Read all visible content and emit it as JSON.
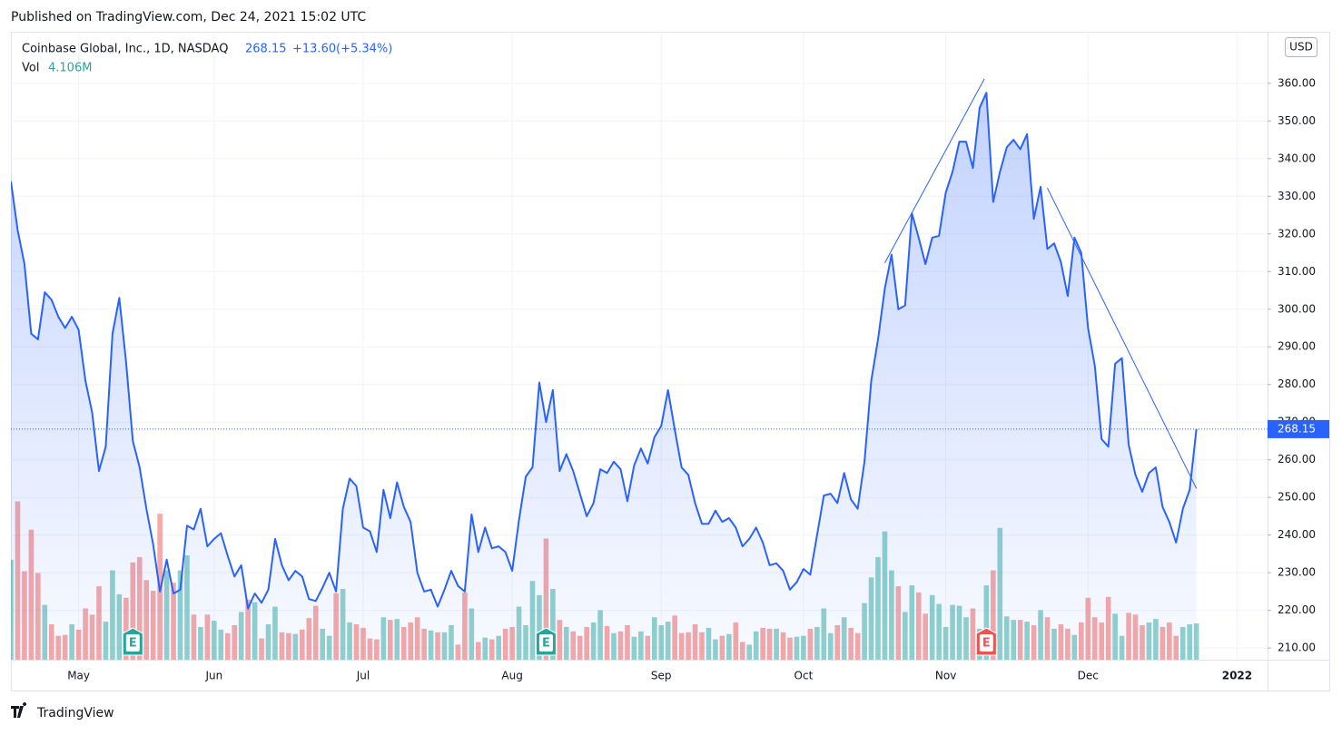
{
  "published": "Published on TradingView.com, Dec 24, 2021 15:02 UTC",
  "brand": "TradingView",
  "chart_data": {
    "type": "line",
    "title": "Coinbase Global, Inc., 1D, NASDAQ",
    "change": "+13.60",
    "change_pct": "(+5.34%)",
    "currency": "USD",
    "color": "#2962ff",
    "categories": [
      null,
      null,
      null,
      null,
      null,
      null,
      null,
      null,
      null,
      null,
      "May",
      null,
      null,
      null,
      null,
      null,
      null,
      null,
      null,
      null,
      null,
      null,
      null,
      null,
      null,
      null,
      null,
      null,
      null,
      null,
      "Jun",
      null,
      null,
      null,
      null,
      null,
      null,
      null,
      null,
      null,
      null,
      null,
      null,
      null,
      null,
      null,
      null,
      null,
      null,
      null,
      null,
      null,
      "Jul",
      null,
      null,
      null,
      null,
      null,
      null,
      null,
      null,
      null,
      null,
      null,
      null,
      null,
      null,
      null,
      null,
      null,
      null,
      null,
      null,
      null,
      "Aug",
      null,
      null,
      null,
      null,
      null,
      null,
      null,
      null,
      null,
      null,
      null,
      null,
      null,
      null,
      null,
      null,
      null,
      null,
      null,
      null,
      null,
      "Sep",
      null,
      null,
      null,
      null,
      null,
      null,
      null,
      null,
      null,
      null,
      null,
      null,
      null,
      null,
      null,
      null,
      null,
      null,
      null,
      null,
      "Oct",
      null,
      null,
      null,
      null,
      null,
      null,
      null,
      null,
      null,
      null,
      null,
      null,
      null,
      null,
      null,
      null,
      null,
      null,
      null,
      null,
      "Nov",
      null,
      null,
      null,
      null,
      null,
      null,
      null,
      null,
      null,
      null,
      null,
      null,
      null,
      null,
      null,
      null,
      null,
      null,
      null,
      null,
      "Dec",
      null,
      null,
      null,
      null,
      null,
      null,
      null,
      null,
      null,
      null,
      null,
      null,
      null,
      null,
      null,
      null,
      null,
      null,
      null,
      null,
      null,
      "2022",
      null,
      null,
      null,
      null
    ],
    "series": [
      {
        "name": "Price",
        "color": "#2962ff",
        "values": [
          334,
          321,
          312,
          293.5,
          292,
          304.5,
          302.5,
          298,
          295,
          298,
          294.5,
          281,
          272.5,
          257,
          263.5,
          293.5,
          303,
          286,
          265,
          258,
          247,
          237.5,
          225,
          233.5,
          224.5,
          225.5,
          242.5,
          241.5,
          247,
          237,
          239,
          240.5,
          234.5,
          229,
          232,
          220.5,
          224.5,
          222,
          225.5,
          239,
          232,
          228,
          230.5,
          229,
          223,
          222.5,
          226,
          230,
          225,
          247,
          255,
          253,
          242,
          241,
          235.5,
          252,
          244.5,
          254,
          247.5,
          243.5,
          230,
          225,
          225.5,
          221,
          225.5,
          230.5,
          226.5,
          225,
          245.5,
          235.5,
          242,
          236.5,
          237,
          235.5,
          230.5,
          244,
          255.5,
          258,
          280.5,
          270,
          278.5,
          257,
          261.5,
          257,
          251,
          245,
          248.5,
          257.5,
          256.5,
          259.5,
          257.5,
          249,
          258.5,
          263,
          259,
          266,
          269,
          278.5,
          268,
          258,
          256,
          248.5,
          243,
          243,
          246.5,
          243.5,
          244.5,
          242,
          237,
          239,
          242,
          238,
          232,
          232.5,
          230.5,
          225.5,
          227.5,
          231,
          229.5,
          240,
          250.5,
          251,
          248.5,
          256.5,
          249.5,
          247,
          259.5,
          281,
          292,
          305.5,
          314.5,
          300,
          301,
          325.5,
          319,
          312,
          319,
          319.5,
          331,
          336.5,
          344.5,
          344.5,
          337.5,
          353.5,
          357.5,
          328.5,
          336.5,
          343,
          345,
          342.5,
          346.5,
          324,
          332.5,
          316,
          317.5,
          312.5,
          303.5,
          319,
          315,
          295,
          285,
          265.5,
          263.5,
          285.5,
          287,
          264,
          256,
          251.5,
          256.5,
          258,
          247.5,
          243.5,
          238,
          247,
          252,
          268.15,
          null,
          null,
          null,
          null,
          null,
          null,
          null,
          null,
          null,
          null
        ]
      }
    ],
    "volume": {
      "name": "Vol",
      "label": "4.106M",
      "up_color": "#26a69a",
      "down_color": "#ef5350",
      "ylim": [
        0,
        71
      ],
      "values": [
        11.3,
        17.9,
        10,
        14.7,
        9.8,
        6.2,
        4,
        2.7,
        2.8,
        4,
        3.4,
        5.8,
        5.1,
        8.3,
        4.3,
        10.1,
        7.4,
        7,
        11,
        11.6,
        9,
        7.8,
        16.5,
        10.1,
        8.7,
        10.1,
        11.8,
        5.1,
        3.7,
        5.1,
        4.4,
        3.4,
        3,
        3.9,
        5.4,
        6.8,
        6.5,
        2.4,
        4,
        6,
        3.1,
        3,
        2.9,
        3.4,
        4.7,
        6.1,
        3.5,
        2.7,
        7.5,
        8,
        4.2,
        4,
        3.6,
        2.4,
        2.3,
        4.8,
        4.5,
        4.6,
        3.7,
        4.2,
        4.8,
        3.5,
        3.3,
        3.1,
        3.1,
        3.9,
        1.7,
        7.6,
        5.8,
        2,
        2.5,
        2.3,
        2.7,
        3.5,
        3.7,
        6,
        3.9,
        8.9,
        7.3,
        13.7,
        8,
        4.5,
        3.7,
        3.2,
        2.7,
        3.7,
        4.2,
        5.6,
        3.8,
        3,
        3.2,
        3.9,
        2.6,
        3.2,
        2.7,
        4.8,
        3.9,
        4.3,
        5,
        3,
        3.1,
        4,
        3.1,
        3.6,
        2.3,
        2.7,
        2.9,
        4.2,
        2,
        1.7,
        3.2,
        3.6,
        3.5,
        3.5,
        3.1,
        2.5,
        2.6,
        2.7,
        3.5,
        3.7,
        5.8,
        3,
        3.9,
        4.8,
        3.6,
        3,
        6.4,
        9.3,
        11.6,
        14.5,
        10.1,
        8.3,
        5.4,
        8.4,
        7.6,
        5.2,
        7.3,
        6.3,
        3.7,
        6.2,
        6.1,
        4.8,
        5.8,
        3.5,
        8.4,
        10.1,
        14.9,
        4.9,
        4.5,
        4.5,
        4.3,
        3.9,
        5.6,
        4.8,
        3.5,
        4,
        3.5,
        2.8,
        4.2,
        7,
        4.8,
        4.2,
        7.1,
        5.2,
        2.7,
        5.3,
        5.1,
        3.9,
        4.2,
        4.6,
        3.7,
        4.2,
        2.7,
        3.7,
        4,
        4.106
      ]
    },
    "events": [
      {
        "label": "E",
        "index": 18,
        "color": "#26a69a"
      },
      {
        "label": "E",
        "index": 79,
        "color": "#26a69a"
      },
      {
        "label": "E",
        "index": 144,
        "color": "#ef5350"
      }
    ],
    "trendlines": [
      {
        "from": [
          129,
          312.3
        ],
        "to": [
          143.7,
          361.2
        ]
      },
      {
        "from": [
          153,
          332.2
        ],
        "to": [
          175,
          252.4
        ]
      }
    ],
    "ylim": [
      206.9,
      373.7
    ],
    "yticks": [
      {
        "value": 210,
        "label": "210.00"
      },
      {
        "value": 220,
        "label": "220.00"
      },
      {
        "value": 230,
        "label": "230.00"
      },
      {
        "value": 240,
        "label": "240.00"
      },
      {
        "value": 250,
        "label": "250.00"
      },
      {
        "value": 260,
        "label": "260.00"
      },
      {
        "value": 270,
        "label": "270.00"
      },
      {
        "value": 280,
        "label": "280.00"
      },
      {
        "value": 290,
        "label": "290.00"
      },
      {
        "value": 300,
        "label": "300.00"
      },
      {
        "value": 310,
        "label": "310.00"
      },
      {
        "value": 320,
        "label": "320.00"
      },
      {
        "value": 330,
        "label": "330.00"
      },
      {
        "value": 340,
        "label": "340.00"
      },
      {
        "value": 350,
        "label": "350.00"
      },
      {
        "value": 360,
        "label": "360.00"
      }
    ],
    "grid": true
  }
}
